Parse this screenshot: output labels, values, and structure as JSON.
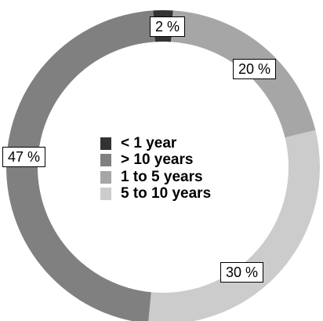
{
  "chart_data": {
    "type": "pie",
    "donut": true,
    "slices": [
      {
        "name": "< 1 year",
        "value": 2,
        "label": "2 %",
        "color": "#333333"
      },
      {
        "name": "1 to 5 years",
        "value": 20,
        "label": "20 %",
        "color": "#a6a6a6"
      },
      {
        "name": "5 to 10 years",
        "value": 30,
        "label": "30 %",
        "color": "#cccccc"
      },
      {
        "name": "> 10 years",
        "value": 47,
        "label": "47 %",
        "color": "#808080"
      }
    ],
    "legend_order": [
      "< 1 year",
      "> 10 years",
      "1 to 5 years",
      "5 to 10 years"
    ],
    "legend_placement": "center"
  }
}
